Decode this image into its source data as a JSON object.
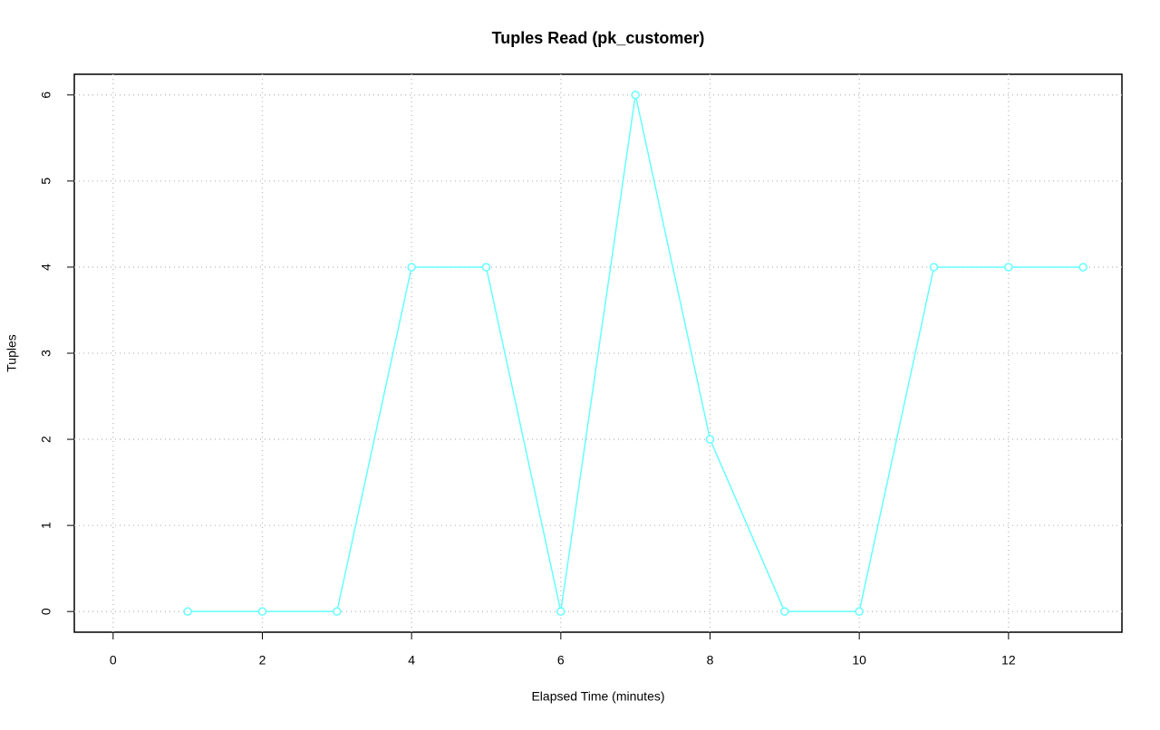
{
  "chart_data": {
    "type": "line",
    "title": "Tuples Read (pk_customer)",
    "x_label": "Elapsed Time (minutes)",
    "y_label": "Tuples",
    "x": [
      1,
      2,
      3,
      4,
      5,
      6,
      7,
      8,
      9,
      10,
      11,
      12,
      13
    ],
    "series": [
      {
        "color": "#66ffff",
        "values": [
          0,
          0,
          0,
          4,
          4,
          0,
          6,
          2,
          0,
          0,
          4,
          4,
          4
        ]
      }
    ],
    "xlim": [
      -0.52,
      13.52
    ],
    "ylim": [
      -0.24,
      6.24
    ],
    "xticks": [
      0,
      2,
      4,
      6,
      8,
      10,
      12
    ],
    "yticks": [
      0,
      1,
      2,
      3,
      4,
      5,
      6
    ],
    "grid": true
  }
}
